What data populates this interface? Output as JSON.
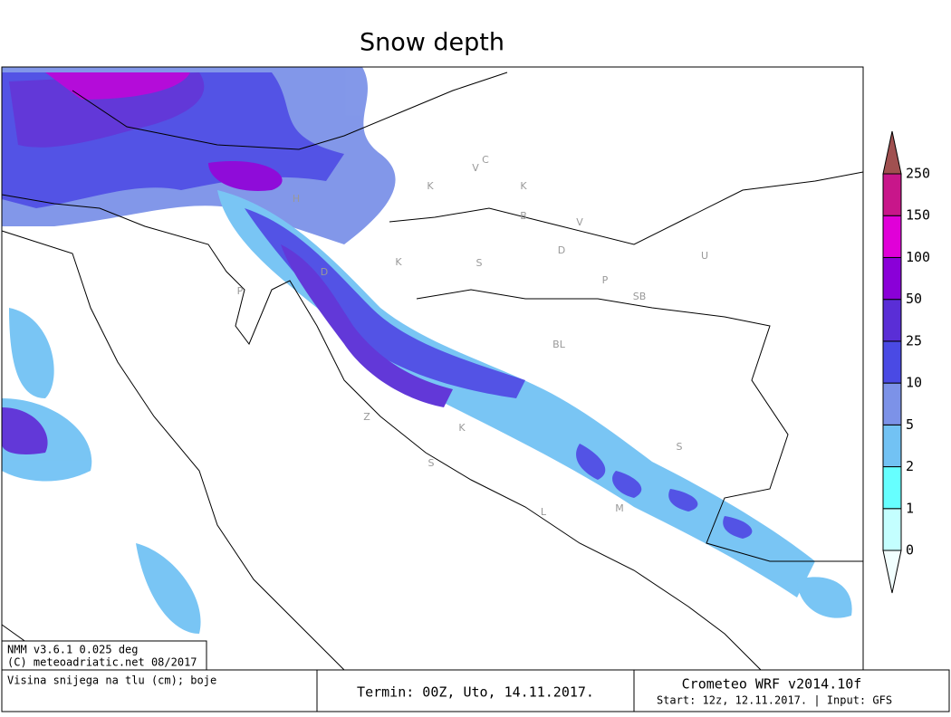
{
  "header": {
    "title": "Snow depth"
  },
  "colorbar": {
    "levels": [
      0,
      1,
      2,
      5,
      10,
      25,
      50,
      100,
      150,
      250
    ],
    "colors": [
      "#f2ffff",
      "#c4ffff",
      "#66ffff",
      "#72c2f4",
      "#7c92e8",
      "#4a4ae4",
      "#5a2ed6",
      "#8a00d8",
      "#e000d8",
      "#c8168a",
      "#a05050"
    ]
  },
  "places": [
    "V",
    "C",
    "K",
    "K",
    "B",
    "V",
    "D",
    "P",
    "SB",
    "BL",
    "U",
    "H",
    "P",
    "D",
    "K",
    "S",
    "Z",
    "K",
    "S",
    "S",
    "M",
    "L"
  ],
  "footer": {
    "model": "NMM v3.6.1 0.025 deg",
    "copyright": "(C) meteoadriatic.net 08/2017",
    "description": "Visina snijega na tlu (cm); boje",
    "term": "Termin: 00Z, Uto, 14.11.2017.",
    "brand": "Crometeo WRF v2014.10f",
    "start": "Start: 12z, 12.11.2017. | Input: GFS"
  }
}
